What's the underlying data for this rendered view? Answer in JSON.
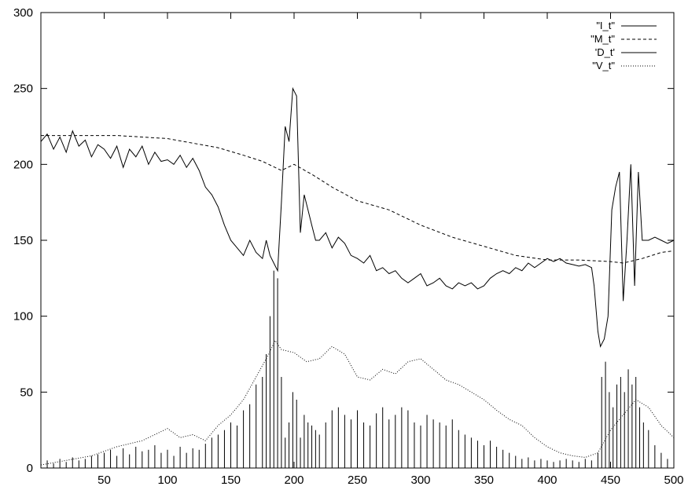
{
  "chart_data": {
    "type": "line",
    "title": "",
    "xlabel": "",
    "ylabel": "",
    "xlim": [
      0,
      500
    ],
    "ylim": [
      0,
      300
    ],
    "xticks": [
      "50",
      "100",
      "150",
      "200",
      "250",
      "300",
      "350",
      "400",
      "450",
      "500"
    ],
    "yticks": [
      "0",
      "50",
      "100",
      "150",
      "200",
      "250",
      "300"
    ],
    "grid": false,
    "legend_position": "top-right",
    "series": [
      {
        "name": "\"I_t\"",
        "style": "solid",
        "x": [
          0,
          5,
          10,
          15,
          20,
          25,
          30,
          35,
          40,
          45,
          50,
          55,
          60,
          65,
          70,
          75,
          80,
          85,
          90,
          95,
          100,
          105,
          110,
          115,
          120,
          125,
          130,
          135,
          140,
          145,
          150,
          155,
          160,
          165,
          170,
          175,
          178,
          181,
          184,
          187,
          190,
          193,
          196,
          199,
          202,
          205,
          208,
          211,
          214,
          217,
          220,
          225,
          230,
          235,
          240,
          245,
          250,
          255,
          260,
          265,
          270,
          275,
          280,
          285,
          290,
          295,
          300,
          305,
          310,
          315,
          320,
          325,
          330,
          335,
          340,
          345,
          350,
          355,
          360,
          365,
          370,
          375,
          380,
          385,
          390,
          395,
          400,
          405,
          410,
          415,
          420,
          425,
          430,
          435,
          437,
          440,
          442,
          445,
          448,
          451,
          454,
          457,
          460,
          463,
          466,
          469,
          472,
          475,
          480,
          485,
          490,
          495,
          500
        ],
        "y": [
          215,
          220,
          210,
          218,
          208,
          222,
          212,
          216,
          205,
          213,
          210,
          204,
          212,
          198,
          210,
          205,
          212,
          200,
          208,
          202,
          203,
          200,
          206,
          198,
          204,
          196,
          185,
          180,
          172,
          160,
          150,
          145,
          140,
          150,
          142,
          138,
          150,
          140,
          135,
          130,
          175,
          225,
          215,
          250,
          245,
          155,
          180,
          170,
          160,
          150,
          150,
          155,
          145,
          152,
          148,
          140,
          138,
          135,
          140,
          130,
          132,
          128,
          130,
          125,
          122,
          125,
          128,
          120,
          122,
          125,
          120,
          118,
          122,
          120,
          122,
          118,
          120,
          125,
          128,
          130,
          128,
          132,
          130,
          135,
          132,
          135,
          138,
          136,
          138,
          135,
          134,
          133,
          134,
          132,
          120,
          90,
          80,
          85,
          100,
          170,
          185,
          195,
          110,
          150,
          200,
          120,
          195,
          150,
          150,
          152,
          150,
          148,
          150
        ]
      },
      {
        "name": "\"M_t\"",
        "style": "dashed",
        "x": [
          0,
          20,
          40,
          60,
          80,
          100,
          120,
          140,
          160,
          175,
          190,
          200,
          215,
          230,
          250,
          275,
          300,
          325,
          350,
          375,
          400,
          425,
          450,
          460,
          475,
          490,
          500
        ],
        "y": [
          219,
          219,
          219,
          219,
          218,
          217,
          214,
          211,
          206,
          202,
          196,
          200,
          193,
          185,
          176,
          170,
          160,
          152,
          146,
          140,
          137,
          137,
          136,
          135,
          138,
          142,
          143
        ]
      },
      {
        "name": "'D_t'",
        "style": "impulses",
        "x": [
          0,
          5,
          10,
          15,
          20,
          25,
          30,
          35,
          40,
          45,
          50,
          55,
          60,
          65,
          70,
          75,
          80,
          85,
          90,
          95,
          100,
          105,
          110,
          115,
          120,
          125,
          130,
          135,
          140,
          145,
          150,
          155,
          160,
          165,
          170,
          175,
          178,
          181,
          184,
          187,
          190,
          193,
          196,
          199,
          202,
          205,
          208,
          211,
          214,
          217,
          220,
          225,
          230,
          235,
          240,
          245,
          250,
          255,
          260,
          265,
          270,
          275,
          280,
          285,
          290,
          295,
          300,
          305,
          310,
          315,
          320,
          325,
          330,
          335,
          340,
          345,
          350,
          355,
          360,
          365,
          370,
          375,
          380,
          385,
          390,
          395,
          400,
          405,
          410,
          415,
          420,
          425,
          430,
          435,
          440,
          443,
          446,
          449,
          452,
          455,
          458,
          461,
          464,
          467,
          470,
          473,
          476,
          480,
          485,
          490,
          495,
          500
        ],
        "y": [
          4,
          5,
          3,
          6,
          4,
          7,
          5,
          6,
          8,
          9,
          10,
          12,
          8,
          13,
          9,
          14,
          11,
          12,
          15,
          10,
          12,
          8,
          14,
          10,
          13,
          12,
          16,
          20,
          22,
          25,
          30,
          28,
          38,
          42,
          55,
          60,
          75,
          100,
          130,
          125,
          60,
          20,
          30,
          50,
          45,
          20,
          35,
          30,
          28,
          25,
          22,
          30,
          38,
          40,
          35,
          32,
          38,
          30,
          28,
          36,
          40,
          32,
          35,
          40,
          38,
          30,
          28,
          35,
          32,
          30,
          28,
          32,
          25,
          22,
          20,
          18,
          15,
          18,
          14,
          12,
          10,
          8,
          6,
          7,
          5,
          6,
          5,
          4,
          5,
          6,
          5,
          4,
          6,
          5,
          10,
          60,
          70,
          50,
          40,
          55,
          60,
          50,
          65,
          55,
          60,
          40,
          30,
          25,
          15,
          10,
          6,
          4
        ]
      },
      {
        "name": "\"V_t\"",
        "style": "dotted",
        "x": [
          0,
          20,
          40,
          60,
          80,
          100,
          110,
          120,
          130,
          140,
          150,
          160,
          170,
          180,
          185,
          190,
          200,
          210,
          220,
          230,
          240,
          250,
          260,
          270,
          280,
          290,
          300,
          310,
          320,
          330,
          340,
          350,
          360,
          370,
          380,
          390,
          400,
          410,
          420,
          430,
          440,
          450,
          460,
          470,
          480,
          490,
          500
        ],
        "y": [
          2,
          5,
          8,
          14,
          18,
          26,
          20,
          22,
          18,
          28,
          35,
          45,
          60,
          75,
          84,
          78,
          76,
          70,
          72,
          80,
          75,
          60,
          58,
          65,
          62,
          70,
          72,
          65,
          58,
          55,
          50,
          45,
          38,
          32,
          28,
          20,
          14,
          10,
          8,
          7,
          10,
          25,
          35,
          45,
          40,
          28,
          20
        ]
      }
    ]
  }
}
